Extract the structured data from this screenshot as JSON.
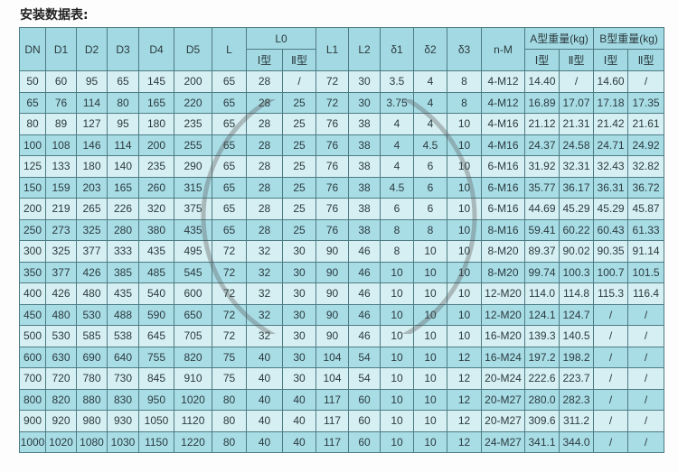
{
  "title": "安装数据表:",
  "header": {
    "top": [
      "DN",
      "D1",
      "D2",
      "D3",
      "D4",
      "D5",
      "L",
      "L0",
      "L1",
      "L2",
      "δ1",
      "δ2",
      "δ3",
      "n-M",
      "A型重量(kg)",
      "B型重量(kg)"
    ],
    "sub": [
      "Ⅰ型",
      "Ⅱ型",
      "Ⅰ型",
      "Ⅱ型",
      "Ⅰ型",
      "Ⅱ型"
    ]
  },
  "rows": [
    [
      "50",
      "60",
      "95",
      "65",
      "145",
      "200",
      "65",
      "28",
      "/",
      "72",
      "30",
      "3.5",
      "4",
      "8",
      "4-M12",
      "14.40",
      "/",
      "14.60",
      "/"
    ],
    [
      "65",
      "76",
      "114",
      "80",
      "165",
      "220",
      "65",
      "28",
      "25",
      "72",
      "30",
      "3.75",
      "4",
      "8",
      "4-M12",
      "16.89",
      "17.07",
      "17.18",
      "17.35"
    ],
    [
      "80",
      "89",
      "127",
      "95",
      "180",
      "235",
      "65",
      "28",
      "25",
      "76",
      "38",
      "4",
      "4",
      "10",
      "4-M16",
      "21.12",
      "21.31",
      "21.42",
      "21.61"
    ],
    [
      "100",
      "108",
      "146",
      "114",
      "200",
      "255",
      "65",
      "28",
      "25",
      "76",
      "38",
      "4",
      "4.5",
      "10",
      "4-M16",
      "24.37",
      "24.58",
      "24.71",
      "24.92"
    ],
    [
      "125",
      "133",
      "180",
      "140",
      "235",
      "290",
      "65",
      "28",
      "25",
      "76",
      "38",
      "4",
      "6",
      "10",
      "6-M16",
      "31.92",
      "32.31",
      "32.43",
      "32.82"
    ],
    [
      "150",
      "159",
      "203",
      "165",
      "260",
      "315",
      "65",
      "28",
      "25",
      "76",
      "38",
      "4.5",
      "6",
      "10",
      "6-M16",
      "35.77",
      "36.17",
      "36.31",
      "36.72"
    ],
    [
      "200",
      "219",
      "265",
      "226",
      "320",
      "375",
      "65",
      "28",
      "25",
      "76",
      "38",
      "6",
      "6",
      "10",
      "6-M16",
      "44.69",
      "45.29",
      "45.29",
      "45.87"
    ],
    [
      "250",
      "273",
      "325",
      "280",
      "380",
      "435",
      "65",
      "28",
      "25",
      "76",
      "38",
      "8",
      "8",
      "10",
      "8-M16",
      "59.41",
      "60.22",
      "60.43",
      "61.33"
    ],
    [
      "300",
      "325",
      "377",
      "333",
      "435",
      "495",
      "72",
      "32",
      "30",
      "90",
      "46",
      "8",
      "10",
      "10",
      "8-M20",
      "89.37",
      "90.02",
      "90.35",
      "91.14"
    ],
    [
      "350",
      "377",
      "426",
      "385",
      "485",
      "545",
      "72",
      "32",
      "30",
      "90",
      "46",
      "10",
      "10",
      "10",
      "8-M20",
      "99.74",
      "100.3",
      "100.7",
      "101.5"
    ],
    [
      "400",
      "426",
      "480",
      "435",
      "540",
      "600",
      "72",
      "32",
      "30",
      "90",
      "46",
      "10",
      "10",
      "10",
      "12-M20",
      "114.0",
      "114.8",
      "115.3",
      "116.4"
    ],
    [
      "450",
      "480",
      "530",
      "488",
      "590",
      "650",
      "72",
      "32",
      "30",
      "90",
      "46",
      "10",
      "10",
      "10",
      "12-M20",
      "124.1",
      "124.7",
      "/",
      "/"
    ],
    [
      "500",
      "530",
      "585",
      "538",
      "645",
      "705",
      "72",
      "32",
      "30",
      "90",
      "46",
      "10",
      "10",
      "10",
      "16-M20",
      "139.3",
      "140.5",
      "/",
      "/"
    ],
    [
      "600",
      "630",
      "690",
      "640",
      "755",
      "820",
      "75",
      "40",
      "30",
      "104",
      "54",
      "10",
      "10",
      "12",
      "16-M24",
      "197.2",
      "198.2",
      "/",
      "/"
    ],
    [
      "700",
      "720",
      "780",
      "730",
      "845",
      "910",
      "75",
      "40",
      "30",
      "104",
      "54",
      "10",
      "10",
      "12",
      "20-M24",
      "222.6",
      "223.7",
      "/",
      "/"
    ],
    [
      "800",
      "820",
      "880",
      "830",
      "950",
      "1020",
      "80",
      "40",
      "40",
      "117",
      "60",
      "10",
      "10",
      "12",
      "20-M27",
      "280.0",
      "282.3",
      "/",
      "/"
    ],
    [
      "900",
      "920",
      "980",
      "930",
      "1050",
      "1120",
      "80",
      "40",
      "40",
      "117",
      "60",
      "10",
      "10",
      "12",
      "20-M27",
      "309.6",
      "311.2",
      "/",
      "/"
    ],
    [
      "1000",
      "1020",
      "1080",
      "1030",
      "1150",
      "1220",
      "80",
      "40",
      "40",
      "117",
      "60",
      "10",
      "10",
      "12",
      "24-M27",
      "341.1",
      "344.0",
      "/",
      "/"
    ]
  ],
  "colors": {
    "header": "#a3d9e2",
    "row_light": "#d6eff2",
    "row_dark": "#a9dde6",
    "border": "#4d7c84"
  }
}
